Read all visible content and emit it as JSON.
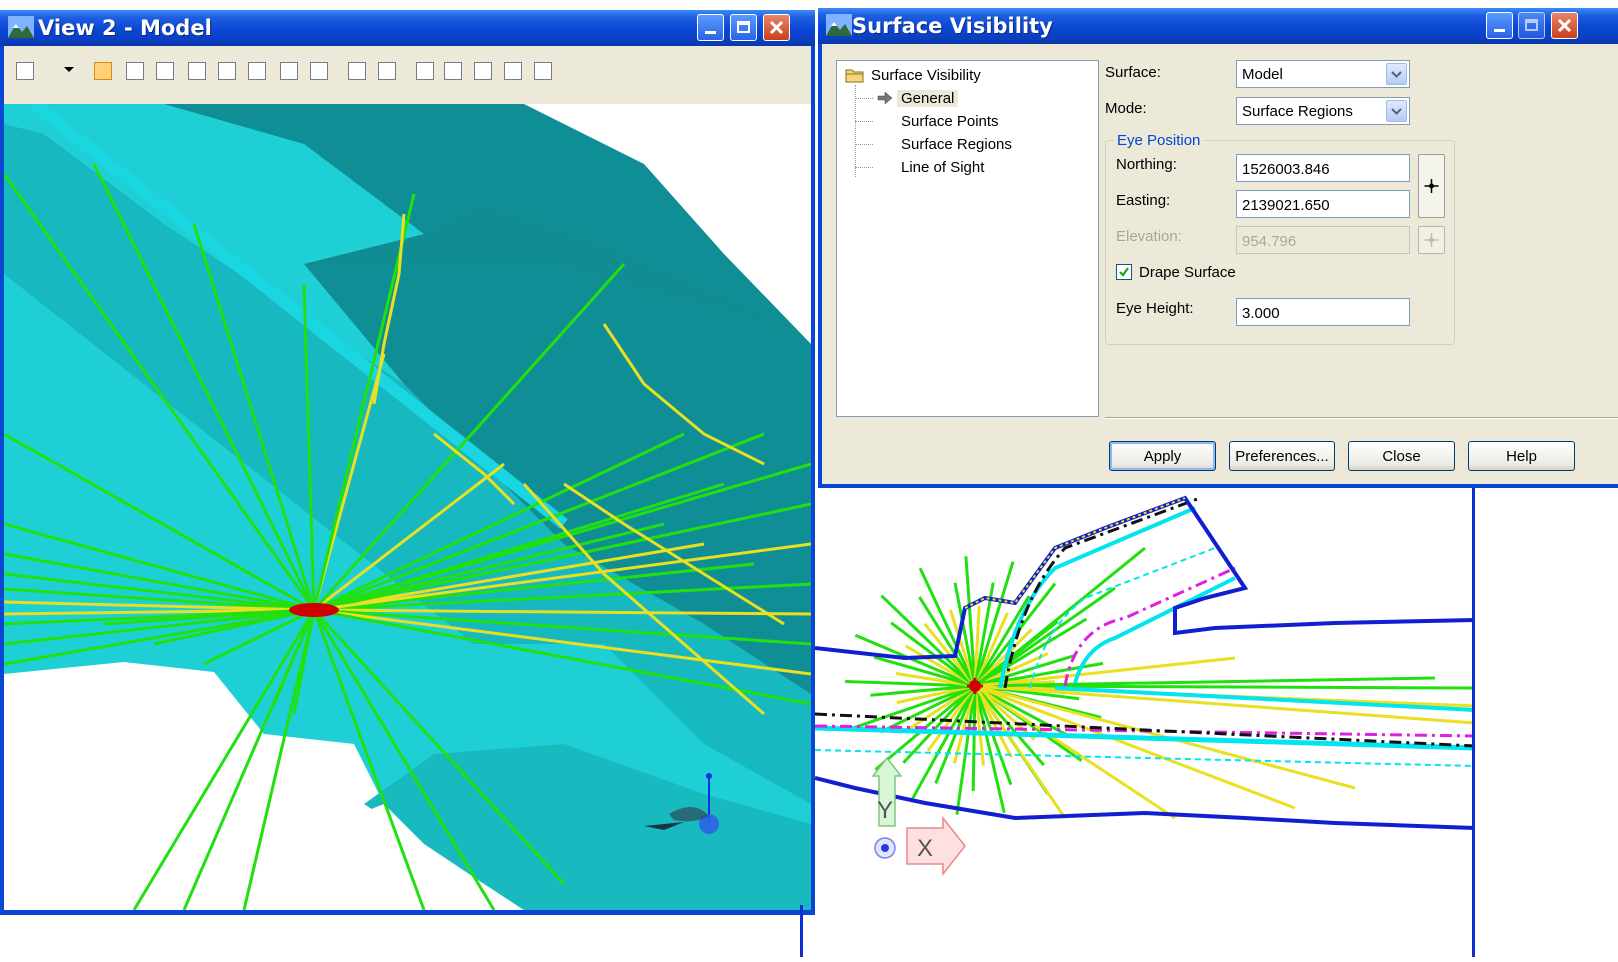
{
  "view_window": {
    "title": "View 2 - Model",
    "toolbar_icons": [
      "view-attributes-icon",
      "dropdown-arrow-icon",
      "update-icon",
      "zoom-in-icon",
      "zoom-out-icon",
      "window-area-icon",
      "fit-view-icon",
      "rotate-view-icon",
      "pan-icon",
      "view-previous-icon",
      "view-next-icon",
      "copy-view-icon",
      "clip-volume-icon",
      "camera-icon",
      "walk-icon",
      "render-icon",
      "tools-icon"
    ]
  },
  "dialog": {
    "title": "Surface Visibility",
    "tree": {
      "root": "Surface Visibility",
      "items": [
        "General",
        "Surface Points",
        "Surface Regions",
        "Line of Sight"
      ],
      "selected": "General"
    },
    "surface": {
      "label": "Surface:",
      "value": "Model"
    },
    "mode": {
      "label": "Mode:",
      "value": "Surface Regions"
    },
    "eye_position": {
      "legend": "Eye Position",
      "northing": {
        "label": "Northing:",
        "value": "1526003.846"
      },
      "easting": {
        "label": "Easting:",
        "value": "2139021.650"
      },
      "elevation": {
        "label": "Elevation:",
        "value": "954.796",
        "disabled": true
      }
    },
    "drape_surface": {
      "label": "Drape Surface",
      "checked": true
    },
    "eye_height": {
      "label": "Eye Height:",
      "value": "3.000"
    },
    "buttons": {
      "apply": "Apply",
      "preferences": "Preferences...",
      "close": "Close",
      "help": "Help"
    }
  },
  "plan_view": {
    "axis_y": "Y",
    "axis_x": "X"
  },
  "colors": {
    "visible_line": "#22e010",
    "hidden_line": "#f0f020",
    "surface_dark": "#0f8a8a",
    "surface_light": "#1ecfd6",
    "eye_marker": "#d00000",
    "boundary": "#1020d0"
  }
}
